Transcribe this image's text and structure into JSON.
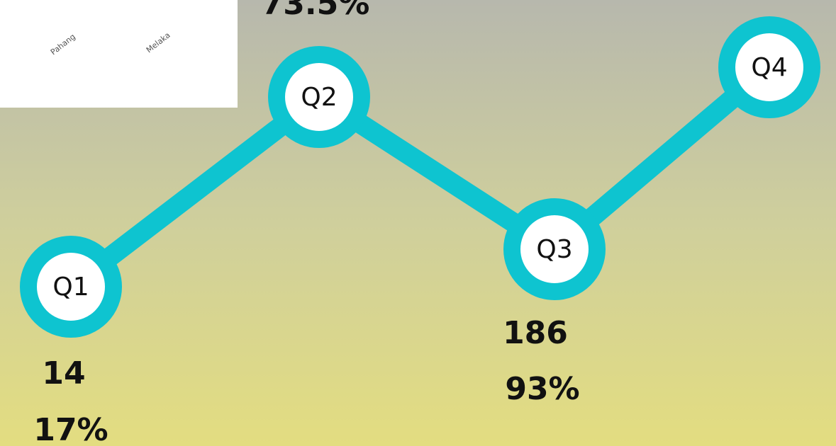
{
  "inset": {
    "labels": [
      "Pahang",
      "Melaka"
    ]
  },
  "nodes": [
    {
      "label": "Q1",
      "count": "14",
      "percent": "17%"
    },
    {
      "label": "Q2",
      "percent": "73.5%"
    },
    {
      "label": "Q3",
      "count": "186",
      "percent": "93%"
    },
    {
      "label": "Q4"
    }
  ]
}
